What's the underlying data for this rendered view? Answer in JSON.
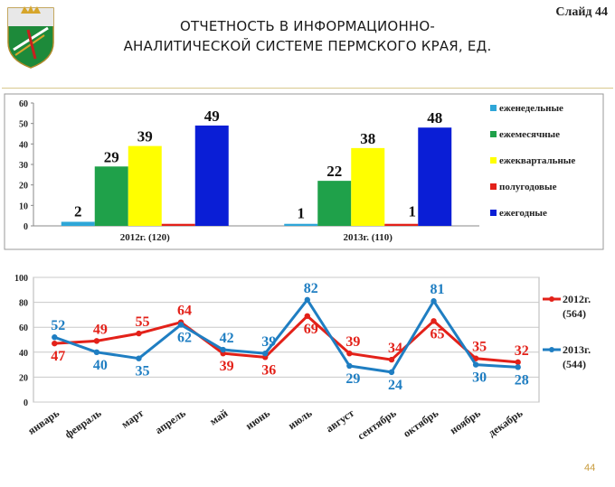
{
  "header": {
    "title_line1": "ОТЧЕТНОСТЬ В ИНФОРМАЦИОННО-",
    "title_line2": "АНАЛИТИЧЕСКОЙ СИСТЕМЕ ПЕРМСКОГО КРАЯ, ЕД.",
    "slide_label": "Слайд 44",
    "page_number": "44"
  },
  "colors": {
    "weekly": "#2ea6d8",
    "monthly": "#1fa14a",
    "quarterly": "#ffff00",
    "halfyear": "#e32119",
    "yearly": "#0a1ed6",
    "line2012": "#e32119",
    "line2013": "#1f7ec2"
  },
  "chart_data": [
    {
      "type": "bar",
      "categories": [
        "2012г.  (120)",
        "2013г.  (110)"
      ],
      "series": [
        {
          "name": "еженедельные",
          "values": [
            2,
            1
          ]
        },
        {
          "name": "ежемесячные",
          "values": [
            29,
            22
          ]
        },
        {
          "name": "ежеквартальные",
          "values": [
            39,
            38
          ]
        },
        {
          "name": "полугодовые",
          "values": [
            1,
            1
          ]
        },
        {
          "name": "ежегодные",
          "values": [
            49,
            48
          ]
        }
      ],
      "data_labels": [
        [
          "2",
          "29",
          "39",
          "",
          "49"
        ],
        [
          "1",
          "22",
          "38",
          "1",
          "48"
        ]
      ],
      "yticks": [
        "0",
        "10",
        "20",
        "30",
        "40",
        "50",
        "60"
      ],
      "ylim": [
        0,
        60
      ],
      "grid": false,
      "legend": "right"
    },
    {
      "type": "line",
      "categories": [
        "январь",
        "февраль",
        "март",
        "апрель",
        "май",
        "июнь",
        "июль",
        "август",
        "сентябрь",
        "октябрь",
        "ноябрь",
        "декабрь"
      ],
      "series": [
        {
          "name_line1": "2012г.",
          "name_line2": "(564)",
          "values": [
            47,
            49,
            55,
            64,
            39,
            36,
            69,
            39,
            34,
            65,
            35,
            32
          ]
        },
        {
          "name_line1": "2013г.",
          "name_line2": "(544)",
          "values": [
            52,
            40,
            35,
            62,
            42,
            39,
            82,
            29,
            24,
            81,
            30,
            28
          ]
        }
      ],
      "yticks": [
        "0",
        "20",
        "40",
        "60",
        "80",
        "100"
      ],
      "ylim": [
        0,
        100
      ],
      "grid": true,
      "legend": "right"
    }
  ]
}
